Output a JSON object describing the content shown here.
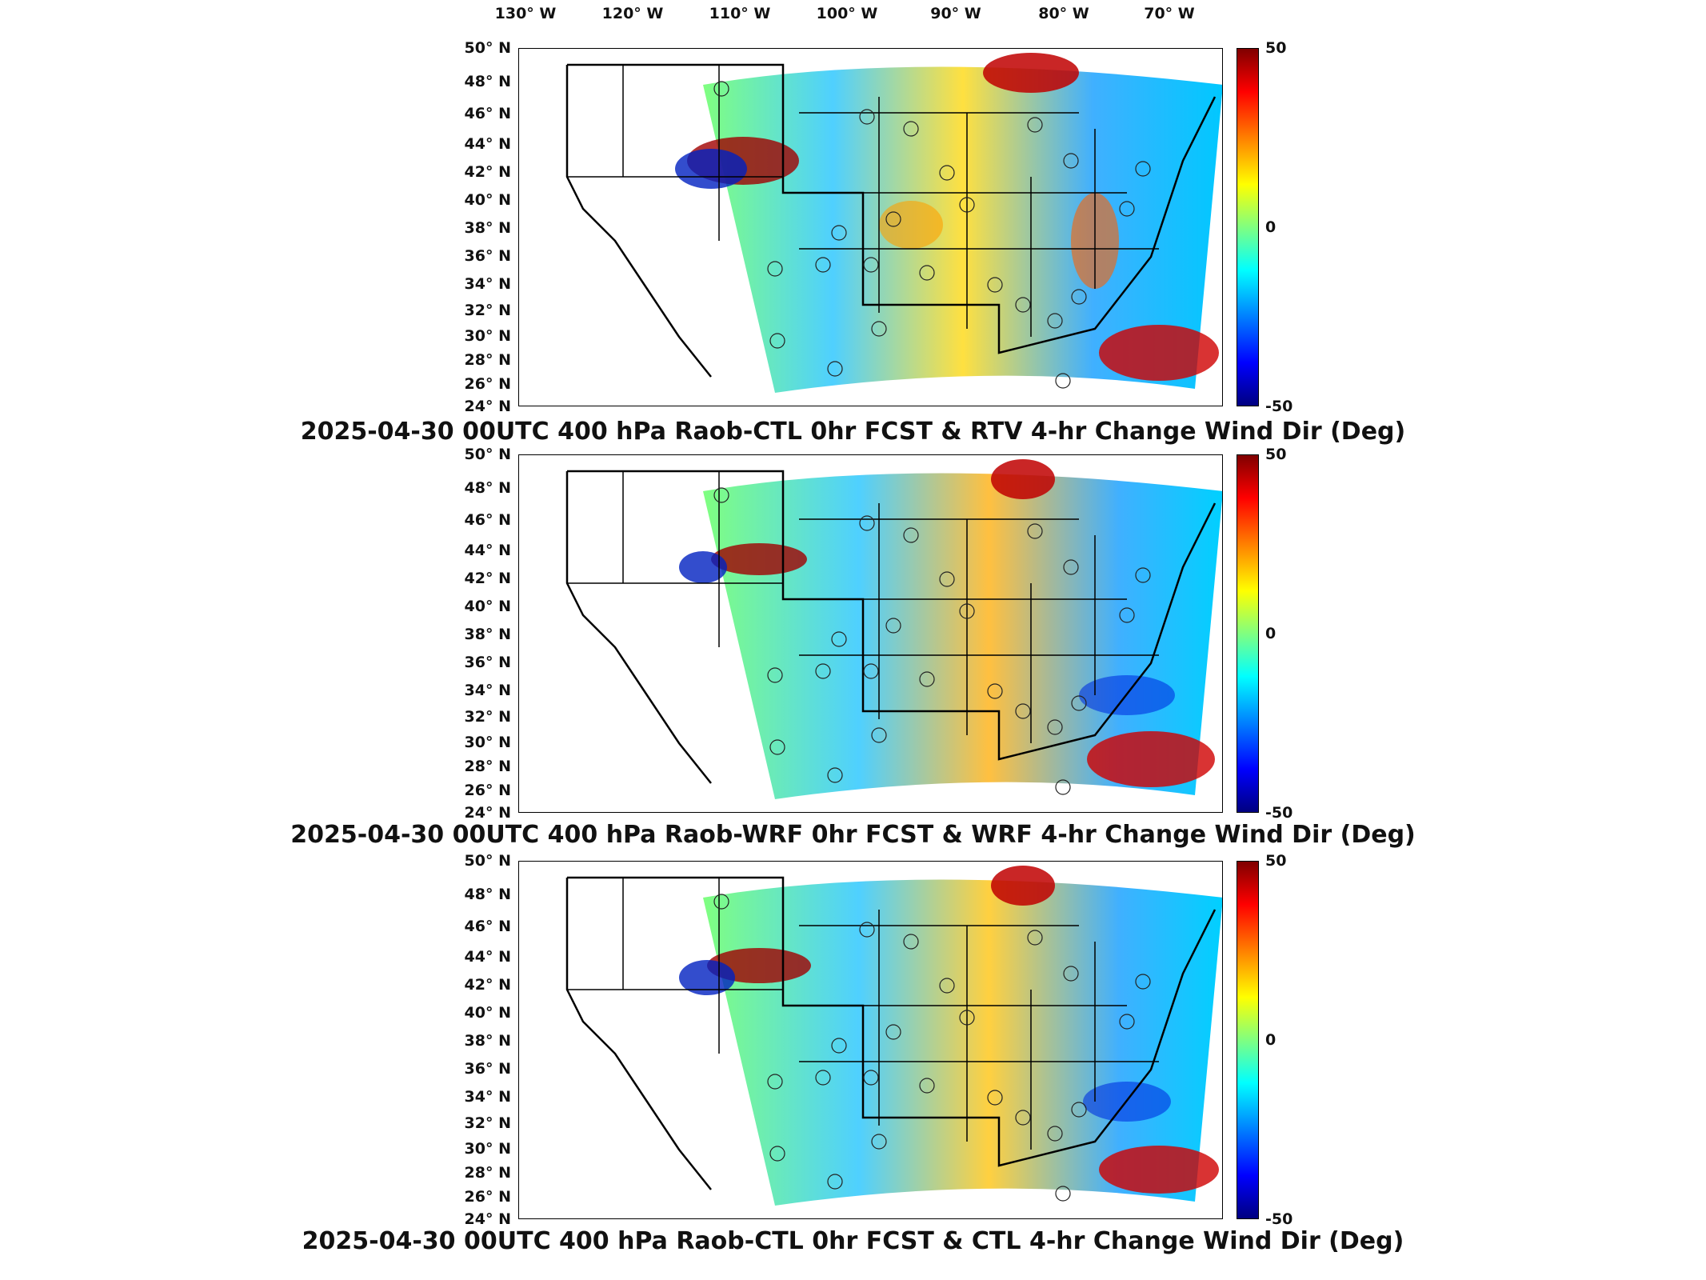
{
  "longitude_labels": [
    "130° W",
    "120° W",
    "110° W",
    "100° W",
    "90° W",
    "80° W",
    "70° W"
  ],
  "latitude_labels": [
    "50° N",
    "48° N",
    "46° N",
    "44° N",
    "42° N",
    "40° N",
    "38° N",
    "36° N",
    "34° N",
    "32° N",
    "30° N",
    "28° N",
    "26° N",
    "24° N"
  ],
  "colorbar": {
    "max": "50",
    "mid": "0",
    "min": "-50"
  },
  "panels": [
    {
      "title": "2025-04-30 00UTC 400 hPa Raob-CTL 0hr FCST & RTV 4-hr Change Wind Dir (Deg)"
    },
    {
      "title": "2025-04-30 00UTC 400 hPa Raob-WRF 0hr FCST & WRF 4-hr Change Wind Dir (Deg)"
    },
    {
      "title": "2025-04-30 00UTC 400 hPa Raob-CTL 0hr FCST & CTL 4-hr Change Wind Dir (Deg)"
    }
  ],
  "colors": {
    "high": "#800000",
    "zero": "#80ff80",
    "low": "#000080",
    "map_outline": "#000000"
  }
}
